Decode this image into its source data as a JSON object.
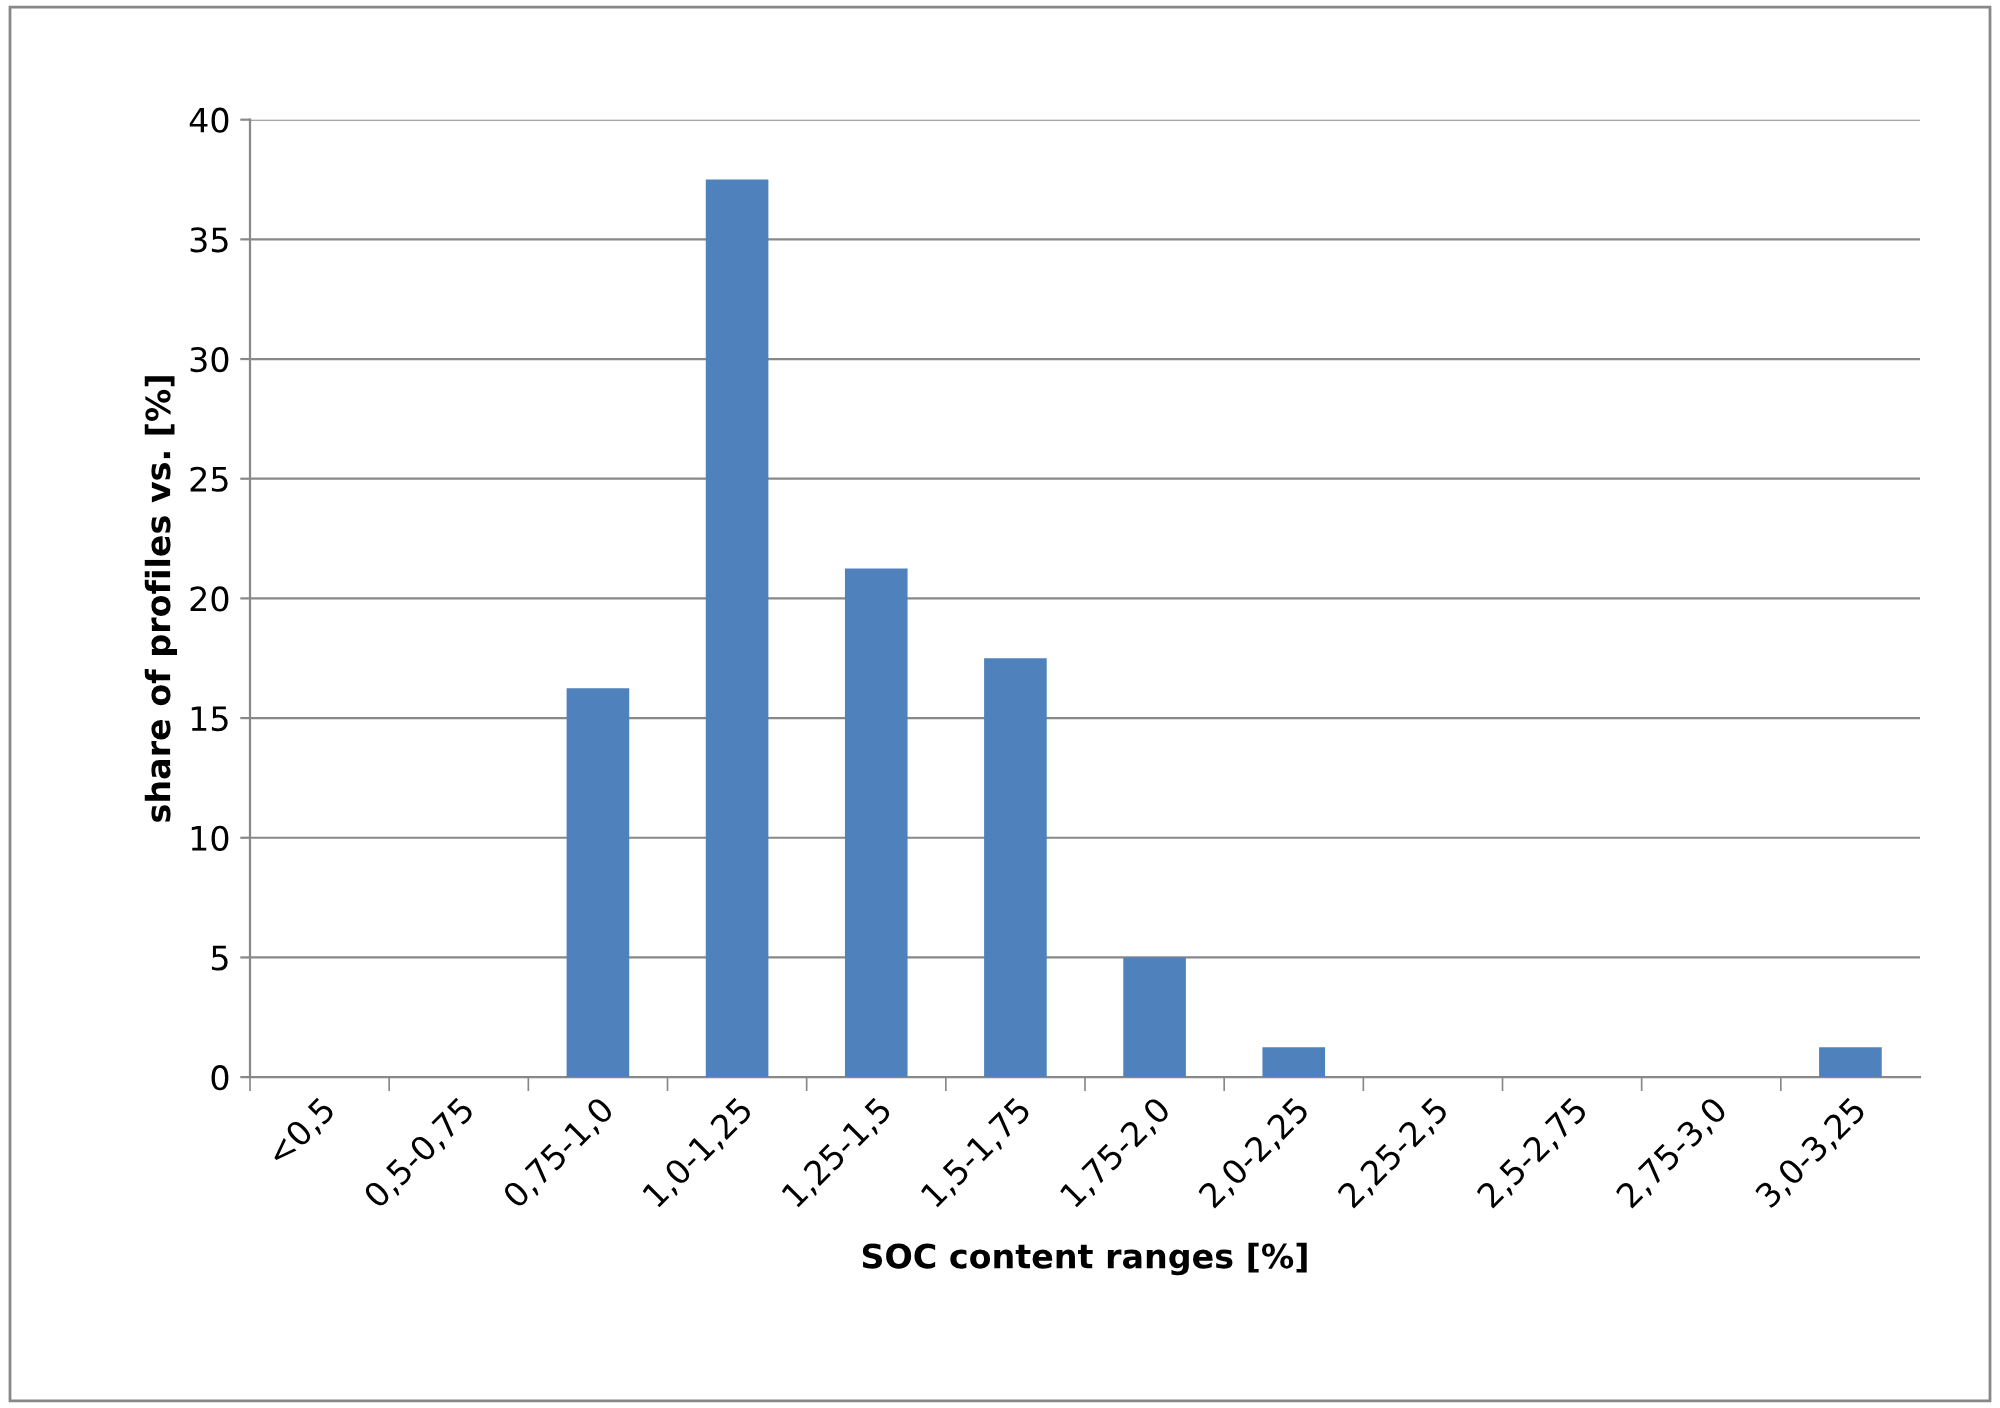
{
  "chart_data": {
    "type": "bar",
    "xlabel": "SOC content ranges [%]",
    "ylabel": "share of profiles vs. [%]",
    "categories": [
      "<0,5",
      "0,5-0,75",
      "0,75-1,0",
      "1,0-1,25",
      "1,25-1,5",
      "1,5-1,75",
      "1,75-2,0",
      "2,0-2,25",
      "2,25-2,5",
      "2,5-2,75",
      "2,75-3,0",
      "3,0-3,25"
    ],
    "values": [
      0,
      0,
      16.25,
      37.5,
      21.25,
      17.5,
      5,
      1.25,
      0,
      0,
      0,
      1.25
    ],
    "color": "#4f81bd",
    "ylim": [
      0,
      40
    ],
    "yticks": [
      0,
      5,
      10,
      15,
      20,
      25,
      30,
      35,
      40
    ],
    "grid": "y",
    "legend": false
  }
}
